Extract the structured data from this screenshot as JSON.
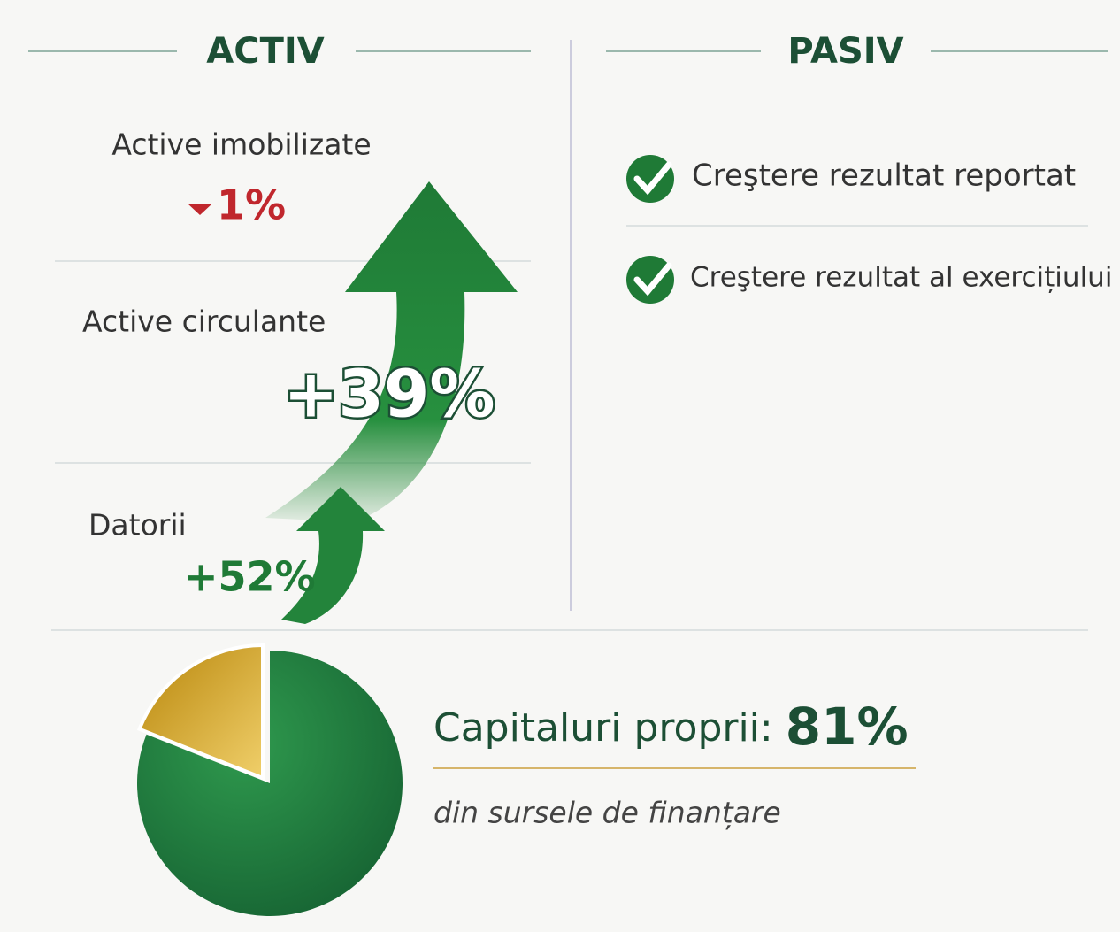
{
  "activ": {
    "title": "ACTIV",
    "items": [
      {
        "label": "Active imobilizate",
        "change": "1%"
      },
      {
        "label": "Active circulante",
        "change": "+39%"
      },
      {
        "label": "Datorii",
        "change": "+52%"
      }
    ]
  },
  "pasiv": {
    "title": "PASIV",
    "items": [
      "Creştere rezultat reportat",
      "Creştere rezultat al exercițiului"
    ]
  },
  "equity": {
    "label": "Capitaluri proprii:",
    "value": 81,
    "value_label": "81%",
    "subtitle": "din sursele de finanțare"
  }
}
